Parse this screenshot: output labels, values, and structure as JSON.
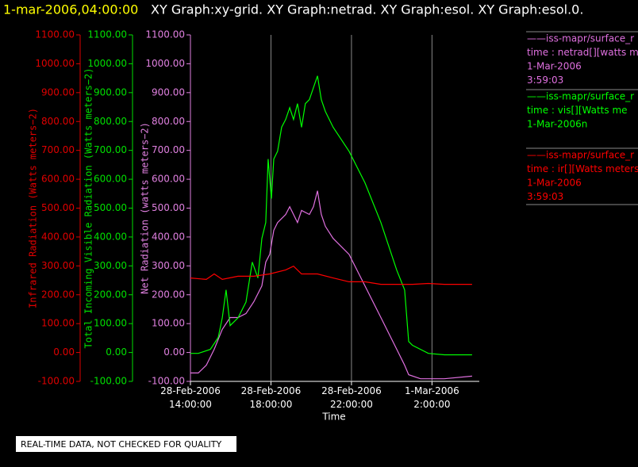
{
  "chart_data": {
    "type": "line",
    "title_time": "1-mar-2006,04:00:00",
    "title": "XY Graph:xy-grid.  XY Graph:netrad.  XY Graph:esol.  XY Graph:esol.0.",
    "x_label": "Time",
    "xlim": [
      14,
      28.35
    ],
    "xticks": [
      {
        "value": 14,
        "label": "28-Feb-2006 14:00:00"
      },
      {
        "value": 18,
        "label": "28-Feb-2006 18:00:00"
      },
      {
        "value": 22,
        "label": "28-Feb-2006 22:00:00"
      },
      {
        "value": 26,
        "label": "1-Mar-2006 2:00:00"
      }
    ],
    "grid": true,
    "y_axes": [
      {
        "label": "Infrared Radiation (Watts meters−2)",
        "color": "#e00000",
        "ylim": [
          -100,
          1100
        ],
        "yticks": [
          {
            "value": -100,
            "label": "-100.00"
          },
          {
            "value": 0,
            "label": "0.00"
          },
          {
            "value": 100,
            "label": "100.00"
          },
          {
            "value": 200,
            "label": "200.00"
          },
          {
            "value": 300,
            "label": "300.00"
          },
          {
            "value": 400,
            "label": "400.00"
          },
          {
            "value": 500,
            "label": "500.00"
          },
          {
            "value": 600,
            "label": "600.00"
          },
          {
            "value": 700,
            "label": "700.00"
          },
          {
            "value": 800,
            "label": "800.00"
          },
          {
            "value": 900,
            "label": "900.00"
          },
          {
            "value": 1000,
            "label": "1000.00"
          },
          {
            "value": 1100,
            "label": "1100.00"
          }
        ]
      },
      {
        "label": "Total Incoming Visible Radiation (Watts meters−2)",
        "color": "#00e000",
        "ylim": [
          -100,
          1100
        ],
        "yticks": [
          {
            "value": -100,
            "label": "-100.00"
          },
          {
            "value": 0,
            "label": "0.00"
          },
          {
            "value": 100,
            "label": "100.00"
          },
          {
            "value": 200,
            "label": "200.00"
          },
          {
            "value": 300,
            "label": "300.00"
          },
          {
            "value": 400,
            "label": "400.00"
          },
          {
            "value": 500,
            "label": "500.00"
          },
          {
            "value": 600,
            "label": "600.00"
          },
          {
            "value": 700,
            "label": "700.00"
          },
          {
            "value": 800,
            "label": "800.00"
          },
          {
            "value": 900,
            "label": "900.00"
          },
          {
            "value": 1000,
            "label": "1000.00"
          },
          {
            "value": 1100,
            "label": "1100.00"
          }
        ]
      },
      {
        "label": "Net Radiation (watts meters−2)",
        "color": "#e080e0",
        "ylim": [
          -100,
          1100
        ],
        "yticks": [
          {
            "value": -100,
            "label": "-100.00"
          },
          {
            "value": 0,
            "label": "0.00"
          },
          {
            "value": 100,
            "label": "100.00"
          },
          {
            "value": 200,
            "label": "200.00"
          },
          {
            "value": 300,
            "label": "300.00"
          },
          {
            "value": 400,
            "label": "400.00"
          },
          {
            "value": 500,
            "label": "500.00"
          },
          {
            "value": 600,
            "label": "600.00"
          },
          {
            "value": 700,
            "label": "700.00"
          },
          {
            "value": 800,
            "label": "800.00"
          },
          {
            "value": 900,
            "label": "900.00"
          },
          {
            "value": 1000,
            "label": "1000.00"
          },
          {
            "value": 1100,
            "label": "1100.00"
          }
        ]
      }
    ],
    "series": [
      {
        "color": "#e070e0",
        "axis": 2,
        "legend": [
          "——iss-mapr/surface_r",
          "time : netrad[][watts m",
          "1-Mar-2006",
          "3:59:03"
        ],
        "x": [
          14.0,
          14.39,
          14.79,
          15.18,
          15.58,
          15.97,
          16.36,
          16.76,
          17.15,
          17.55,
          17.74,
          17.94,
          18.14,
          18.33,
          18.73,
          18.93,
          19.12,
          19.32,
          19.52,
          19.91,
          20.11,
          20.31,
          20.5,
          20.7,
          21.09,
          21.88,
          22.67,
          23.46,
          24.25,
          24.64,
          24.84,
          25.43,
          26.61,
          27.99
        ],
        "values": [
          -71,
          -71,
          -44,
          11,
          80,
          121,
          121,
          135,
          176,
          231,
          313,
          340,
          423,
          450,
          478,
          505,
          478,
          450,
          492,
          478,
          505,
          560,
          478,
          437,
          395,
          340,
          231,
          121,
          11,
          -44,
          -77,
          -91,
          -91,
          -82
        ]
      },
      {
        "color": "#00ff00",
        "axis": 1,
        "legend": [
          "——iss-mapr/surface_r",
          "time : vis[][Watts me",
          "1-Mar-2006n"
        ],
        "x": [
          14.0,
          14.39,
          14.99,
          15.38,
          15.58,
          15.77,
          15.97,
          16.36,
          16.76,
          17.07,
          17.35,
          17.55,
          17.74,
          17.86,
          18.02,
          18.14,
          18.33,
          18.53,
          18.73,
          18.93,
          19.12,
          19.32,
          19.52,
          19.71,
          19.91,
          20.11,
          20.31,
          20.5,
          20.7,
          21.09,
          21.88,
          22.67,
          23.46,
          24.25,
          24.64,
          24.84,
          25.03,
          25.82,
          26.61,
          27.99
        ],
        "values": [
          -3,
          -3,
          11,
          52,
          120,
          217,
          93,
          120,
          175,
          313,
          258,
          395,
          450,
          670,
          533,
          670,
          697,
          780,
          807,
          848,
          807,
          862,
          780,
          862,
          876,
          917,
          958,
          876,
          835,
          780,
          697,
          588,
          450,
          285,
          217,
          38,
          25,
          -3,
          -8,
          -8
        ]
      },
      {
        "color": "#ff0000",
        "axis": 0,
        "legend": [
          "——iss-mapr/surface_r",
          "time : ir[][Watts meters",
          "1-Mar-2006",
          "3:59:03"
        ],
        "x": [
          14.0,
          14.79,
          15.18,
          15.58,
          16.36,
          17.15,
          17.94,
          18.73,
          19.12,
          19.52,
          20.31,
          21.09,
          21.88,
          22.67,
          23.46,
          24.25,
          25.03,
          25.82,
          26.61,
          27.99
        ],
        "values": [
          258,
          253,
          272,
          253,
          264,
          264,
          272,
          286,
          299,
          272,
          272,
          258,
          245,
          245,
          236,
          236,
          236,
          239,
          236,
          236
        ]
      }
    ],
    "footer": "REAL-TIME DATA, NOT CHECKED FOR QUALITY"
  }
}
